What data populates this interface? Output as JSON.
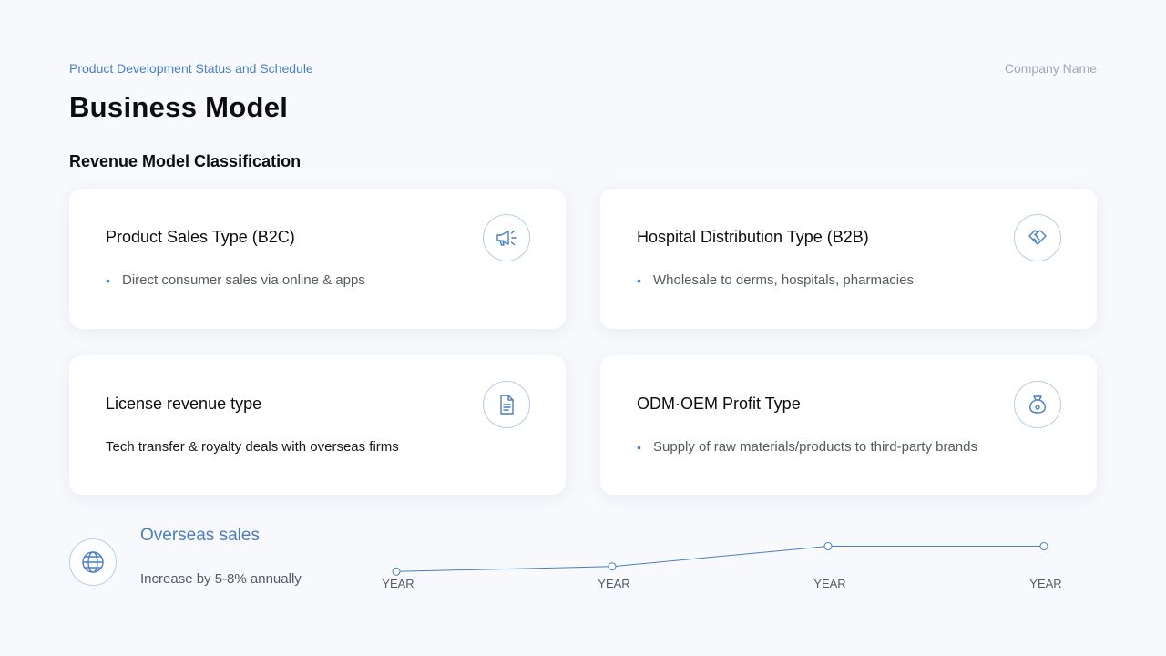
{
  "header": {
    "breadcrumb": "Product Development Status and Schedule",
    "company": "Company Name",
    "title": "Business Model"
  },
  "section": {
    "title": "Revenue Model Classification"
  },
  "cards": [
    {
      "title": "Product Sales Type (B2C)",
      "desc": "Direct consumer sales via online & apps",
      "bullet": "•",
      "icon": "megaphone-icon"
    },
    {
      "title": "Hospital Distribution Type (B2B)",
      "desc": "Wholesale to derms, hospitals, pharmacies",
      "bullet": "•",
      "icon": "handshake-icon"
    },
    {
      "title": "License revenue type",
      "desc": "Tech transfer & royalty deals with overseas firms",
      "icon": "document-icon"
    },
    {
      "title": "ODM·OEM Profit Type",
      "desc": "Supply of raw materials/products to third-party brands",
      "bullet": "•",
      "icon": "money-bag-icon"
    }
  ],
  "overseas": {
    "title": "Overseas sales",
    "desc": "Increase by 5-8% annually",
    "icon": "globe-icon"
  },
  "chart_data": {
    "type": "line",
    "categories": [
      "YEAR",
      "YEAR",
      "YEAR",
      "YEAR"
    ],
    "values": [
      1,
      1.2,
      2,
      2
    ],
    "ylim": [
      0,
      2.2
    ],
    "grid": false,
    "color": "#4a7fc0"
  },
  "colors": {
    "accent": "#4a7fc0",
    "background": "#f7f9fc",
    "card": "#ffffff"
  }
}
